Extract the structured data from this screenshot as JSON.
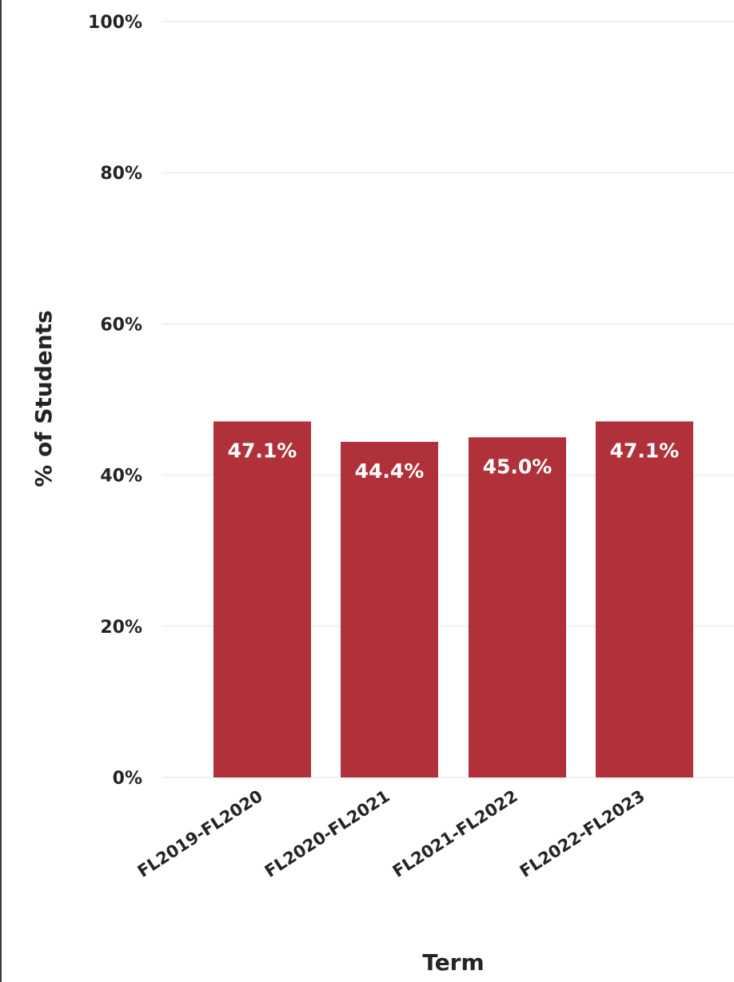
{
  "chart_data": {
    "type": "bar",
    "categories": [
      "FL2019-FL2020",
      "FL2020-FL2021",
      "FL2021-FL2022",
      "FL2022-FL2023"
    ],
    "values": [
      47.1,
      44.4,
      45.0,
      47.1
    ],
    "data_labels": [
      "47.1%",
      "44.4%",
      "45.0%",
      "47.1%"
    ],
    "xlabel": "Term",
    "ylabel": "% of Students",
    "ylim": [
      0,
      100
    ],
    "yticks": [
      0,
      20,
      40,
      60,
      80,
      100
    ],
    "ytick_labels": [
      "0%",
      "20%",
      "40%",
      "60%",
      "80%",
      "100%"
    ],
    "grid": true,
    "bar_color": "#b1313a",
    "gridline_color": "#f1f1f1",
    "text_color": "#252423"
  }
}
